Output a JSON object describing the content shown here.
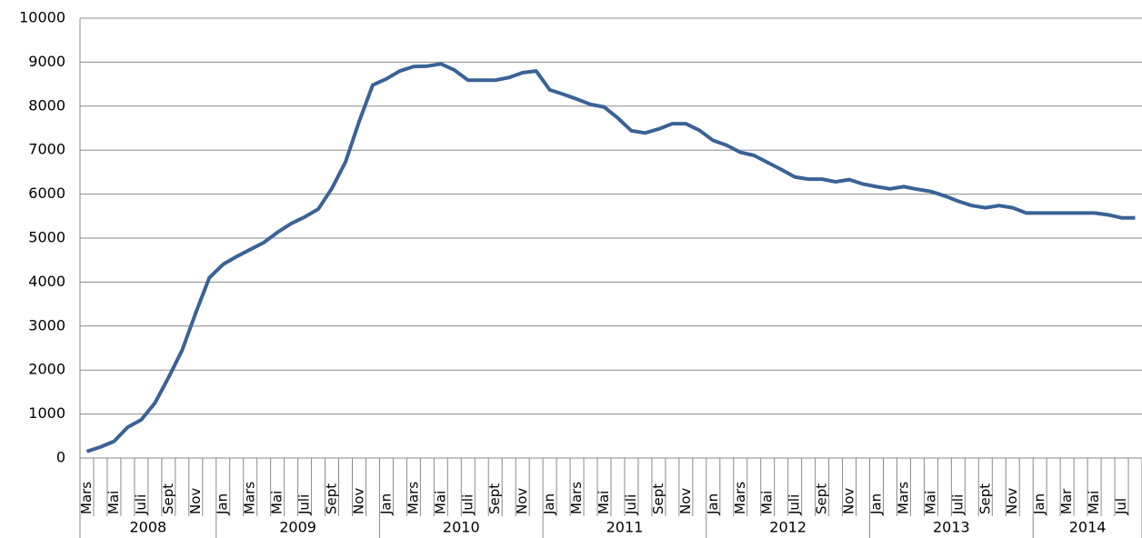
{
  "chart_data": {
    "type": "line",
    "categories": [
      "Mars",
      null,
      "Mai",
      null,
      "Juli",
      null,
      "Sept",
      null,
      "Nov",
      null,
      "Jan",
      null,
      "Mars",
      null,
      "Mai",
      null,
      "Juli",
      null,
      "Sept",
      null,
      "Nov",
      null,
      "Jan",
      null,
      "Mars",
      null,
      "Mai",
      null,
      "Juli",
      null,
      "Sept",
      null,
      "Nov",
      null,
      "Jan",
      null,
      "Mars",
      null,
      "Mai",
      null,
      "Juli",
      null,
      "Sept",
      null,
      "Nov",
      null,
      "Jan",
      null,
      "Mars",
      null,
      "Mai",
      null,
      "Juli",
      null,
      "Sept",
      null,
      "Nov",
      null,
      "Jan",
      null,
      "Mars",
      null,
      "Mai",
      null,
      "Juli",
      null,
      "Sept",
      null,
      "Nov",
      null,
      "Jan",
      null,
      "Mar",
      null,
      "Mai",
      null,
      "Jul",
      null
    ],
    "years": [
      "2008",
      null,
      null,
      null,
      null,
      null,
      null,
      null,
      null,
      null,
      "2009",
      null,
      null,
      null,
      null,
      null,
      null,
      null,
      null,
      null,
      null,
      null,
      "2010",
      null,
      null,
      null,
      null,
      null,
      null,
      null,
      null,
      null,
      null,
      null,
      "2011",
      null,
      null,
      null,
      null,
      null,
      null,
      null,
      null,
      null,
      null,
      null,
      "2012",
      null,
      null,
      null,
      null,
      null,
      null,
      null,
      null,
      null,
      null,
      null,
      "2013",
      null,
      null,
      null,
      null,
      null,
      null,
      null,
      null,
      null,
      null,
      null,
      "2014",
      null,
      null,
      null,
      null,
      null,
      null,
      null
    ],
    "series": [
      {
        "color": "#3a6296",
        "values": [
          150,
          250,
          380,
          700,
          870,
          1250,
          1830,
          2450,
          3300,
          4100,
          4400,
          4580,
          4740,
          4900,
          5130,
          5330,
          5480,
          5660,
          6130,
          6730,
          7650,
          8480,
          8620,
          8800,
          8900,
          8910,
          8960,
          8820,
          8590,
          8590,
          8590,
          8650,
          8760,
          8800,
          8370,
          8270,
          8160,
          8040,
          7980,
          7730,
          7440,
          7390,
          7480,
          7600,
          7600,
          7450,
          7220,
          7110,
          6950,
          6880,
          6720,
          6560,
          6390,
          6340,
          6340,
          6280,
          6330,
          6230,
          6170,
          6120,
          6170,
          6110,
          6060,
          5960,
          5840,
          5740,
          5690,
          5740,
          5690,
          5570,
          5570,
          5570,
          5570,
          5570,
          5570,
          5530,
          5460,
          5460
        ]
      }
    ],
    "ylim": [
      0,
      10000
    ],
    "yticks": [
      0,
      1000,
      2000,
      3000,
      4000,
      5000,
      6000,
      7000,
      8000,
      9000,
      10000
    ],
    "grid": true
  }
}
